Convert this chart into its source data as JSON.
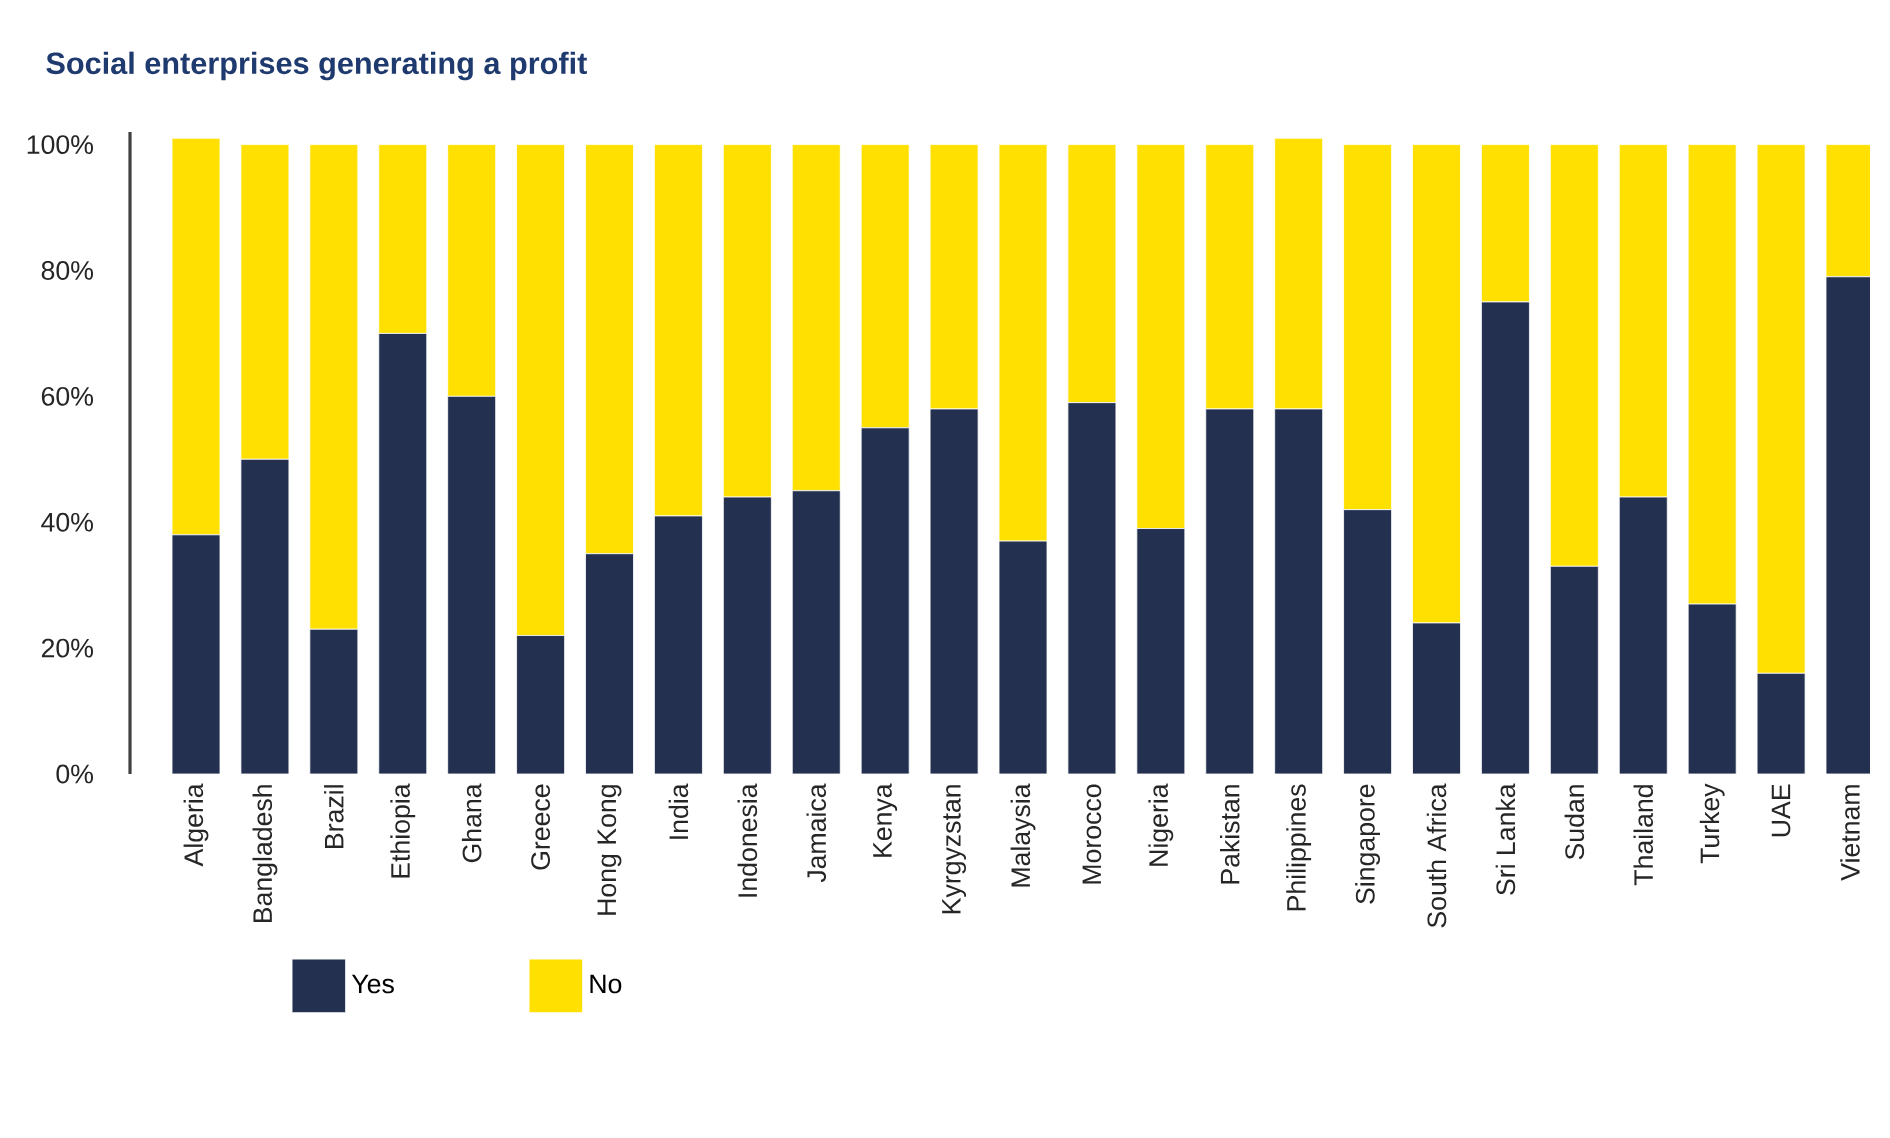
{
  "chart_data": {
    "type": "bar",
    "stacked": true,
    "title": "Social enterprises generating a profit",
    "categories": [
      "Algeria",
      "Bangladesh",
      "Brazil",
      "Ethiopia",
      "Ghana",
      "Greece",
      "Hong Kong",
      "India",
      "Indonesia",
      "Jamaica",
      "Kenya",
      "Kyrgyzstan",
      "Malaysia",
      "Morocco",
      "Nigeria",
      "Pakistan",
      "Philippines",
      "Singapore",
      "South Africa",
      "Sri Lanka",
      "Sudan",
      "Thailand",
      "Turkey",
      "UAE",
      "Vietnam"
    ],
    "series": [
      {
        "name": "Yes",
        "color": "#23304f",
        "values": [
          38,
          50,
          23,
          70,
          60,
          22,
          35,
          41,
          44,
          45,
          55,
          58,
          37,
          59,
          39,
          58,
          58,
          42,
          24,
          75,
          33,
          44,
          27,
          16,
          79
        ]
      },
      {
        "name": "No",
        "color": "#ffe000",
        "values": [
          63,
          50,
          77,
          30,
          40,
          78,
          65,
          59,
          56,
          55,
          45,
          42,
          63,
          41,
          61,
          42,
          43,
          58,
          76,
          25,
          67,
          56,
          73,
          84,
          21
        ]
      }
    ],
    "ylim": [
      0,
      102
    ],
    "yticks": [
      {
        "value": 0,
        "label": "0%"
      },
      {
        "value": 20,
        "label": "20%"
      },
      {
        "value": 40,
        "label": "40%"
      },
      {
        "value": 60,
        "label": "60%"
      },
      {
        "value": 80,
        "label": "80%"
      },
      {
        "value": 100,
        "label": "100%"
      }
    ],
    "grid": false,
    "legend": "bottom left"
  }
}
